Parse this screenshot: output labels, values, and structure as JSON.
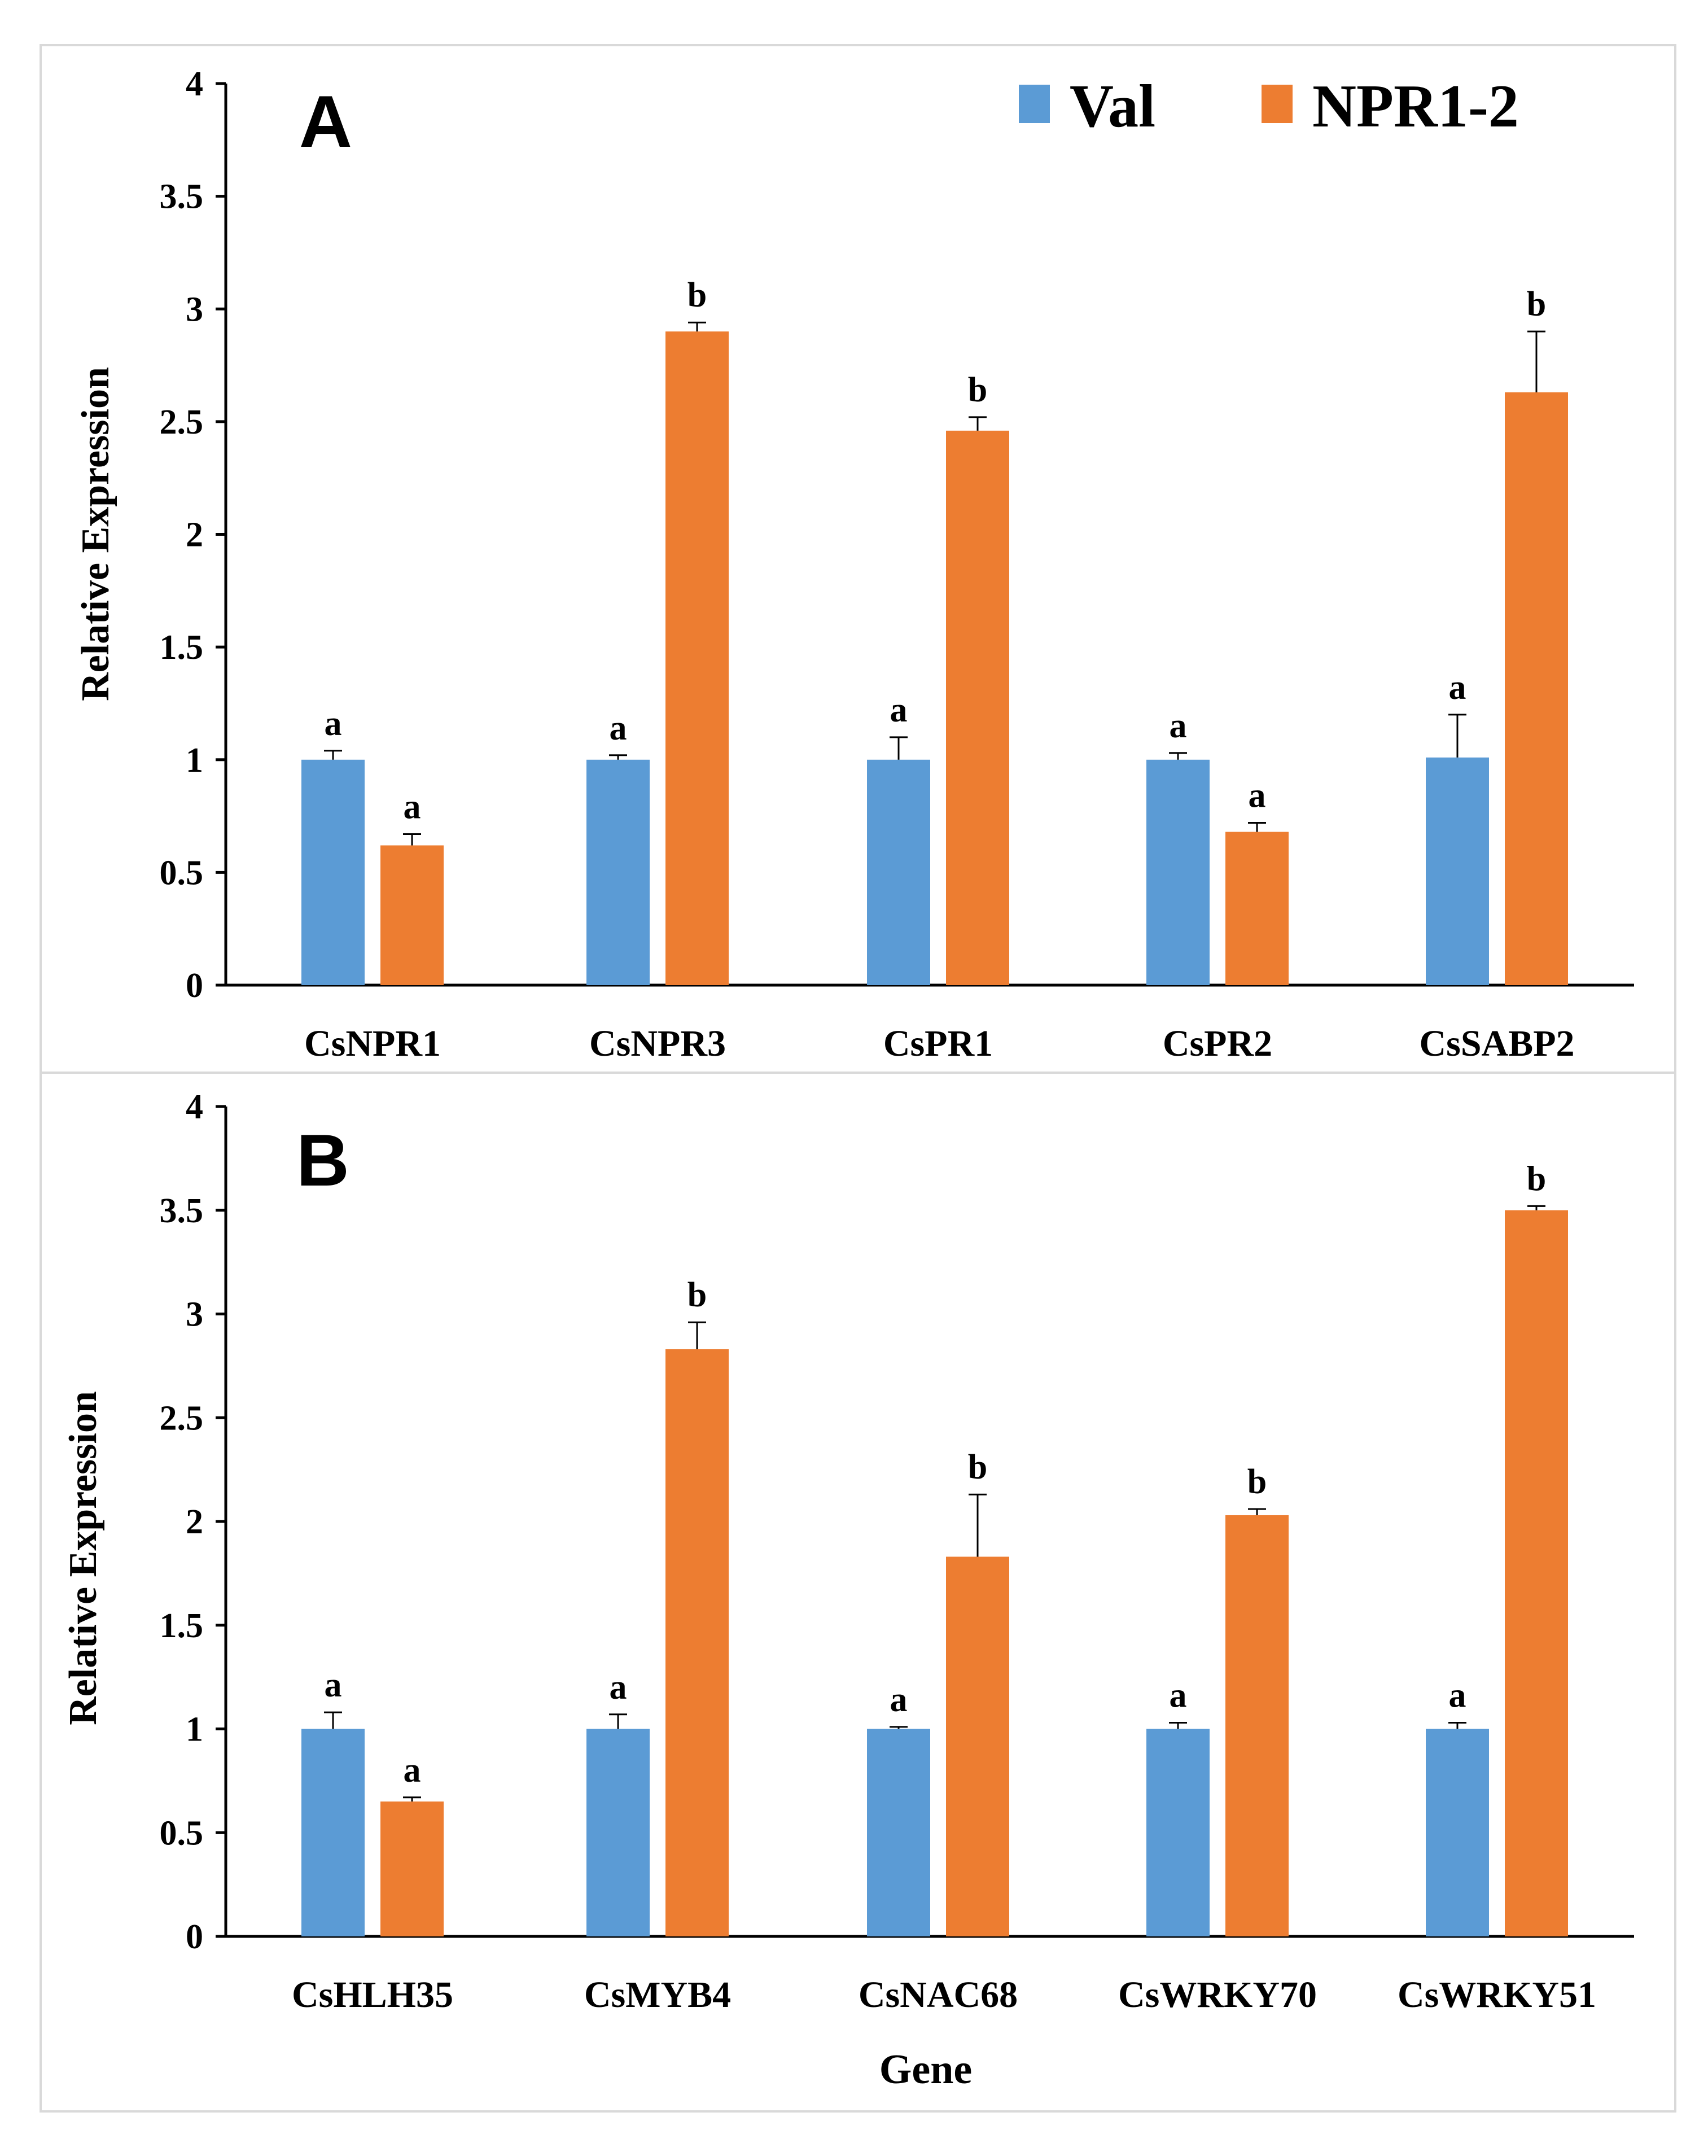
{
  "legend": {
    "val": {
      "label": "Val",
      "color": "#5B9BD5"
    },
    "npr": {
      "label": "NPR1-2",
      "color": "#ED7D31"
    }
  },
  "x_label": "Gene",
  "chart_data": [
    {
      "type": "bar",
      "panel": "A",
      "ylabel": "Relative Expression",
      "ylim": [
        0,
        4
      ],
      "yticks": [
        "0",
        "0.5",
        "1",
        "1.5",
        "2",
        "2.5",
        "3",
        "3.5",
        "4"
      ],
      "categories": [
        "CsNPR1",
        "CsNPR3",
        "CsPR1",
        "CsPR2",
        "CsSABP2"
      ],
      "series": [
        {
          "name": "Val",
          "values": [
            1.0,
            1.0,
            1.0,
            1.0,
            1.01
          ],
          "errors": [
            0.04,
            0.02,
            0.1,
            0.03,
            0.19
          ],
          "letters": [
            "a",
            "a",
            "a",
            "a",
            "a"
          ]
        },
        {
          "name": "NPR1-2",
          "values": [
            0.62,
            2.9,
            2.46,
            0.68,
            2.63
          ],
          "errors": [
            0.05,
            0.04,
            0.06,
            0.04,
            0.27
          ],
          "letters": [
            "a",
            "b",
            "b",
            "a",
            "b"
          ]
        }
      ]
    },
    {
      "type": "bar",
      "panel": "B",
      "ylabel": "Relative Expression",
      "xlabel": "Gene",
      "ylim": [
        0,
        4
      ],
      "yticks": [
        "0",
        "0.5",
        "1",
        "1.5",
        "2",
        "2.5",
        "3",
        "3.5",
        "4"
      ],
      "categories": [
        "CsHLH35",
        "CsMYB4",
        "CsNAC68",
        "CsWRKY70",
        "CsWRKY51"
      ],
      "series": [
        {
          "name": "Val",
          "values": [
            1.0,
            1.0,
            1.0,
            1.0,
            1.0
          ],
          "errors": [
            0.08,
            0.07,
            0.01,
            0.03,
            0.03
          ],
          "letters": [
            "a",
            "a",
            "a",
            "a",
            "a"
          ]
        },
        {
          "name": "NPR1-2",
          "values": [
            0.65,
            2.83,
            1.83,
            2.03,
            3.5
          ],
          "errors": [
            0.02,
            0.13,
            0.3,
            0.03,
            0.02
          ],
          "letters": [
            "a",
            "b",
            "b",
            "b",
            "b"
          ]
        }
      ]
    }
  ]
}
